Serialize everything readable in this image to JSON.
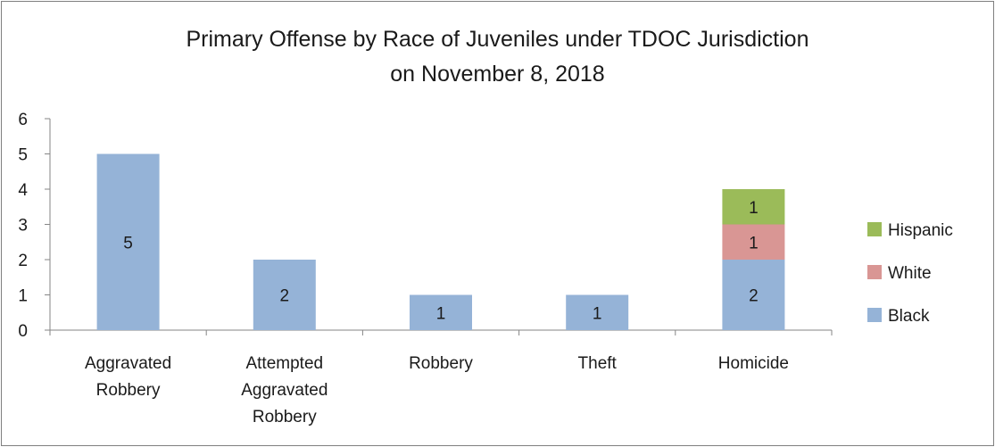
{
  "chart_data": {
    "type": "bar",
    "stacked": true,
    "title": "Primary Offense by Race of Juveniles under TDOC Jurisdiction",
    "subtitle": "on November 8, 2018",
    "categories": [
      [
        "Aggravated",
        "Robbery"
      ],
      [
        "Attempted",
        "Aggravated",
        "Robbery"
      ],
      [
        "Robbery"
      ],
      [
        "Theft"
      ],
      [
        "Homicide"
      ]
    ],
    "series": [
      {
        "name": "Black",
        "color": "#95b3d7",
        "values": [
          5,
          2,
          1,
          1,
          2
        ]
      },
      {
        "name": "White",
        "color": "#d99694",
        "values": [
          0,
          0,
          0,
          0,
          1
        ]
      },
      {
        "name": "Hispanic",
        "color": "#9bbb59",
        "values": [
          0,
          0,
          0,
          0,
          1
        ]
      }
    ],
    "ylim": [
      0,
      6
    ],
    "yticks": [
      0,
      1,
      2,
      3,
      4,
      5,
      6
    ],
    "grid": false,
    "legend_position": "right",
    "data_labels": true
  }
}
